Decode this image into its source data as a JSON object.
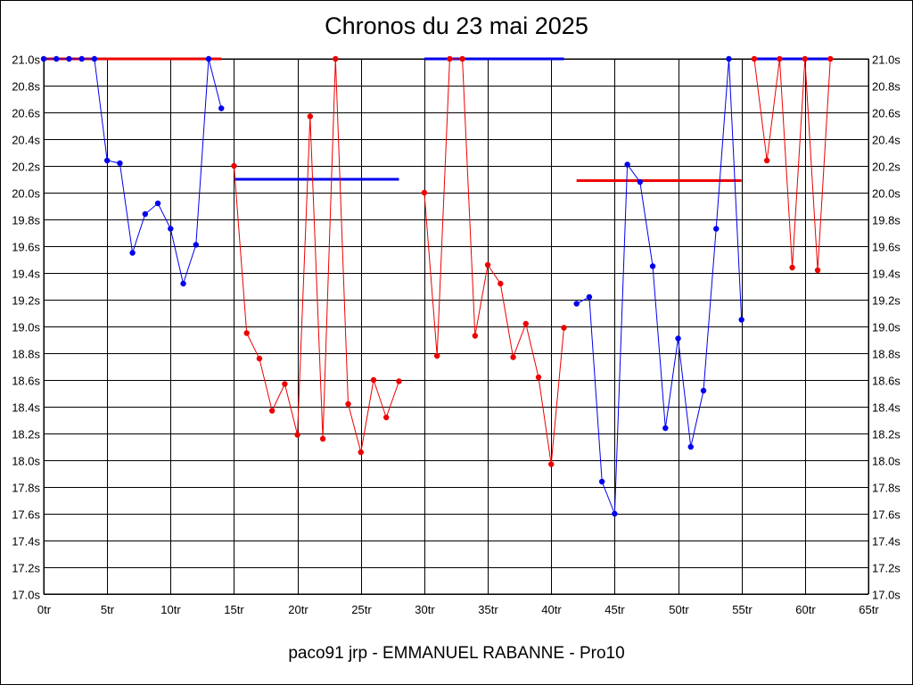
{
  "title": "Chronos du 23 mai 2025",
  "footer": "paco91 jrp - EMMANUEL RABANNE - Pro10",
  "colors": {
    "blue": "#0000ee",
    "red": "#ee0000",
    "grid": "#000000"
  },
  "chart_data": {
    "type": "line",
    "title": "Chronos du 23 mai 2025",
    "xlabel": "",
    "ylabel": "",
    "xlim": [
      0,
      65
    ],
    "ylim": [
      17.0,
      21.0
    ],
    "grid": true,
    "x_ticks": [
      "0tr",
      "5tr",
      "10tr",
      "15tr",
      "20tr",
      "25tr",
      "30tr",
      "35tr",
      "40tr",
      "45tr",
      "50tr",
      "55tr",
      "60tr",
      "65tr"
    ],
    "y_ticks": [
      "17.0s",
      "17.2s",
      "17.4s",
      "17.6s",
      "17.8s",
      "18.0s",
      "18.2s",
      "18.4s",
      "18.6s",
      "18.8s",
      "19.0s",
      "19.2s",
      "19.4s",
      "19.6s",
      "19.8s",
      "20.0s",
      "20.2s",
      "20.4s",
      "20.6s",
      "20.8s",
      "21.0s"
    ],
    "series": [
      {
        "color": "blue",
        "x": [
          0,
          1,
          2,
          3,
          4,
          5,
          6,
          7,
          8,
          9,
          10,
          11,
          12,
          13,
          14
        ],
        "values": [
          21.0,
          21.0,
          21.0,
          21.0,
          21.0,
          20.24,
          20.22,
          19.55,
          19.84,
          19.92,
          19.73,
          19.32,
          19.61,
          21.0,
          20.63
        ]
      },
      {
        "color": "red",
        "x": [
          15,
          16,
          17,
          18,
          19,
          20,
          21,
          22,
          23,
          24,
          25,
          26,
          27,
          28
        ],
        "values": [
          20.2,
          18.95,
          18.76,
          18.37,
          18.57,
          18.19,
          20.57,
          18.16,
          21.0,
          18.42,
          18.06,
          18.6,
          18.32,
          18.59
        ]
      },
      {
        "color": "red",
        "x": [
          30,
          31,
          32,
          33,
          34,
          35,
          36,
          37,
          38,
          39,
          40,
          41
        ],
        "values": [
          20.0,
          18.78,
          21.0,
          21.0,
          18.93,
          19.46,
          19.32,
          18.77,
          19.02,
          18.62,
          17.97,
          18.99
        ]
      },
      {
        "color": "blue",
        "x": [
          42,
          43,
          44,
          45,
          46,
          47,
          48,
          49,
          50,
          51,
          52,
          53,
          54,
          55
        ],
        "values": [
          19.17,
          19.22,
          17.84,
          17.6,
          20.21,
          20.08,
          19.45,
          18.24,
          18.91,
          18.1,
          18.52,
          19.73,
          21.0,
          19.05
        ]
      },
      {
        "color": "red",
        "x": [
          56,
          57,
          58,
          59,
          60,
          61,
          62
        ],
        "values": [
          21.0,
          20.24,
          21.0,
          19.44,
          21.0,
          19.42,
          21.0
        ]
      }
    ],
    "averages": [
      {
        "color": "red",
        "x": [
          0,
          14
        ],
        "value": 21.0
      },
      {
        "color": "blue",
        "x": [
          15,
          28
        ],
        "value": 20.1
      },
      {
        "color": "blue",
        "x": [
          30,
          41
        ],
        "value": 21.0
      },
      {
        "color": "red",
        "x": [
          42,
          55
        ],
        "value": 20.09
      },
      {
        "color": "blue",
        "x": [
          56,
          62
        ],
        "value": 21.0
      }
    ]
  }
}
